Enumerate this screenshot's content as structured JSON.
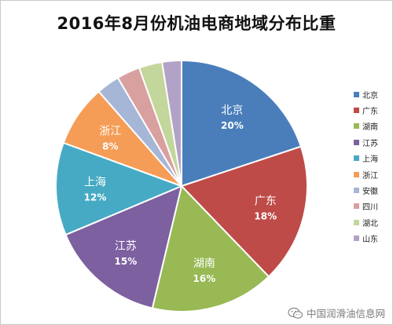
{
  "chart_data": {
    "type": "pie",
    "title": "2016年8月份机油电商地域分布比重",
    "slices": [
      {
        "name": "北京",
        "value": 20,
        "label": "20%",
        "color": "#4a7ebb",
        "show_label": true
      },
      {
        "name": "广东",
        "value": 18,
        "label": "18%",
        "color": "#be4b48",
        "show_label": true
      },
      {
        "name": "湖南",
        "value": 16,
        "label": "16%",
        "color": "#98b954",
        "show_label": true
      },
      {
        "name": "江苏",
        "value": 15,
        "label": "15%",
        "color": "#7d60a0",
        "show_label": true
      },
      {
        "name": "上海",
        "value": 12,
        "label": "12%",
        "color": "#46aac4",
        "show_label": true
      },
      {
        "name": "浙江",
        "value": 8,
        "label": "8%",
        "color": "#f59d56",
        "show_label": true
      },
      {
        "name": "安徽",
        "value": 3,
        "label": "",
        "color": "#a5b6d6",
        "show_label": false
      },
      {
        "name": "四川",
        "value": 3,
        "label": "",
        "color": "#d9a0a0",
        "show_label": false
      },
      {
        "name": "湖北",
        "value": 3,
        "label": "",
        "color": "#c3d69b",
        "show_label": false
      },
      {
        "name": "山东",
        "value": 2.5,
        "label": "",
        "color": "#b3a2c7",
        "show_label": false
      }
    ],
    "start_angle_deg": 0,
    "direction": "clockwise",
    "legend_position": "right"
  },
  "watermark": {
    "text": "中国润滑油信息网",
    "icon": "wechat-icon"
  }
}
